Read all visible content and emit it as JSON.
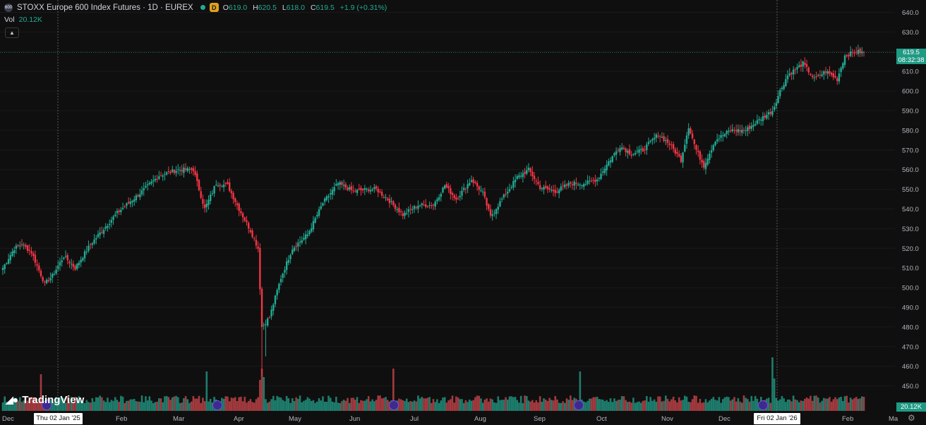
{
  "header": {
    "symbol_badge": "600",
    "title": "STOXX Europe 600 Index Futures · 1D · EUREX",
    "d_badge": "D",
    "ohlc": [
      {
        "key": "O",
        "value": "619.0"
      },
      {
        "key": "H",
        "value": "620.5"
      },
      {
        "key": "L",
        "value": "618.0"
      },
      {
        "key": "C",
        "value": "619.5"
      }
    ],
    "change": "+1.9 (+0.31%)"
  },
  "volume_indicator": {
    "label": "Vol",
    "value": "20.12K"
  },
  "collapse_icon": "chevron-up-icon",
  "price_tag": {
    "price": "619.5",
    "countdown": "08:32:38"
  },
  "volume_tag": "20.12K",
  "crosshair_dates": [
    "Thu 02 Jan '25",
    "Fri 02 Jan '26"
  ],
  "brand": {
    "name": "TradingView",
    "icon": "tradingview-logo-icon"
  },
  "settings_icon": "gear-icon",
  "colors": {
    "up": "#22ab94",
    "down": "#f23645",
    "up_vol": "#1e7d6d",
    "down_vol": "#a33a3f",
    "background": "#0f0f0f"
  },
  "chart_data": {
    "type": "candlestick",
    "y_axis": {
      "ticks": [
        640.0,
        630.0,
        620.0,
        610.0,
        600.0,
        590.0,
        580.0,
        570.0,
        560.0,
        550.0,
        540.0,
        530.0,
        520.0,
        510.0,
        500.0,
        490.0,
        480.0,
        470.0,
        460.0,
        450.0
      ],
      "ylim": [
        445,
        643
      ]
    },
    "x_axis": {
      "labels": [
        "Dec",
        "Feb",
        "Mar",
        "Apr",
        "May",
        "Jun",
        "Jul",
        "Aug",
        "Sep",
        "Oct",
        "Nov",
        "Dec",
        "Feb",
        "Ma"
      ]
    },
    "last_price": 619.5,
    "price_anchors": [
      [
        0,
        510
      ],
      [
        6,
        520
      ],
      [
        10,
        522
      ],
      [
        15,
        518
      ],
      [
        22,
        502
      ],
      [
        26,
        506
      ],
      [
        32,
        516
      ],
      [
        38,
        510
      ],
      [
        46,
        522
      ],
      [
        60,
        538
      ],
      [
        72,
        548
      ],
      [
        82,
        557
      ],
      [
        92,
        560
      ],
      [
        100,
        560
      ],
      [
        106,
        540
      ],
      [
        112,
        553
      ],
      [
        118,
        552
      ],
      [
        124,
        540
      ],
      [
        130,
        529
      ],
      [
        134,
        520
      ],
      [
        136,
        480
      ],
      [
        140,
        485
      ],
      [
        146,
        505
      ],
      [
        152,
        520
      ],
      [
        160,
        527
      ],
      [
        168,
        543
      ],
      [
        176,
        553
      ],
      [
        184,
        549
      ],
      [
        192,
        550
      ],
      [
        196,
        550
      ],
      [
        202,
        545
      ],
      [
        210,
        537
      ],
      [
        218,
        542
      ],
      [
        226,
        542
      ],
      [
        232,
        552
      ],
      [
        238,
        545
      ],
      [
        246,
        555
      ],
      [
        252,
        548
      ],
      [
        256,
        536
      ],
      [
        262,
        545
      ],
      [
        270,
        556
      ],
      [
        276,
        560
      ],
      [
        282,
        551
      ],
      [
        290,
        549
      ],
      [
        298,
        553
      ],
      [
        306,
        553
      ],
      [
        312,
        555
      ],
      [
        318,
        564
      ],
      [
        324,
        572
      ],
      [
        330,
        568
      ],
      [
        336,
        570
      ],
      [
        344,
        578
      ],
      [
        350,
        573
      ],
      [
        356,
        565
      ],
      [
        360,
        582
      ],
      [
        364,
        570
      ],
      [
        368,
        562
      ],
      [
        374,
        575
      ],
      [
        382,
        580
      ],
      [
        390,
        580
      ],
      [
        398,
        586
      ],
      [
        404,
        590
      ],
      [
        408,
        600
      ],
      [
        412,
        608
      ],
      [
        420,
        614
      ],
      [
        426,
        606
      ],
      [
        432,
        610
      ],
      [
        438,
        606
      ],
      [
        442,
        618
      ],
      [
        448,
        620
      ],
      [
        452,
        619.5
      ]
    ],
    "spikes": [
      [
        136,
        455
      ],
      [
        138,
        465
      ]
    ],
    "volume": {
      "base_scale_k": 20.12,
      "spikes": [
        [
          20,
          2.6
        ],
        [
          107,
          2.8
        ],
        [
          135,
          2.2
        ],
        [
          136,
          3.0
        ],
        [
          137,
          2.4
        ],
        [
          205,
          3.0
        ],
        [
          303,
          2.8
        ],
        [
          404,
          3.8
        ],
        [
          405,
          2.3
        ],
        [
          440,
          1.0
        ],
        [
          452,
          1.0
        ]
      ]
    }
  }
}
